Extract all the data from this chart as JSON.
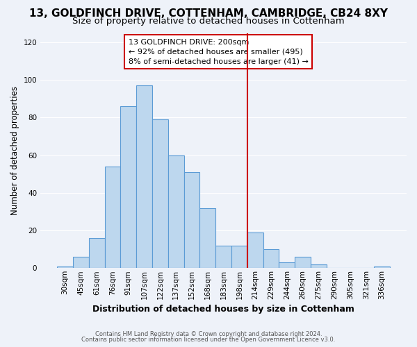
{
  "title": "13, GOLDFINCH DRIVE, COTTENHAM, CAMBRIDGE, CB24 8XY",
  "subtitle": "Size of property relative to detached houses in Cottenham",
  "xlabel": "Distribution of detached houses by size in Cottenham",
  "ylabel": "Number of detached properties",
  "bar_labels": [
    "30sqm",
    "45sqm",
    "61sqm",
    "76sqm",
    "91sqm",
    "107sqm",
    "122sqm",
    "137sqm",
    "152sqm",
    "168sqm",
    "183sqm",
    "198sqm",
    "214sqm",
    "229sqm",
    "244sqm",
    "260sqm",
    "275sqm",
    "290sqm",
    "305sqm",
    "321sqm",
    "336sqm"
  ],
  "bar_heights": [
    1,
    6,
    16,
    54,
    86,
    97,
    79,
    60,
    51,
    32,
    12,
    12,
    19,
    10,
    3,
    6,
    2,
    0,
    0,
    0,
    1
  ],
  "bar_color": "#bdd7ee",
  "bar_edge_color": "#5b9bd5",
  "background_color": "#eef2f9",
  "grid_color": "#ffffff",
  "vline_index": 11.5,
  "vline_color": "#cc0000",
  "annotation_title": "13 GOLDFINCH DRIVE: 200sqm",
  "annotation_line1": "← 92% of detached houses are smaller (495)",
  "annotation_line2": "8% of semi-detached houses are larger (41) →",
  "footer1": "Contains HM Land Registry data © Crown copyright and database right 2024.",
  "footer2": "Contains public sector information licensed under the Open Government Licence v3.0.",
  "ylim": [
    0,
    125
  ],
  "yticks": [
    0,
    20,
    40,
    60,
    80,
    100,
    120
  ],
  "title_fontsize": 11,
  "subtitle_fontsize": 9.5,
  "xlabel_fontsize": 9,
  "ylabel_fontsize": 8.5,
  "tick_fontsize": 7.5,
  "annot_fontsize": 8,
  "footer_fontsize": 6
}
